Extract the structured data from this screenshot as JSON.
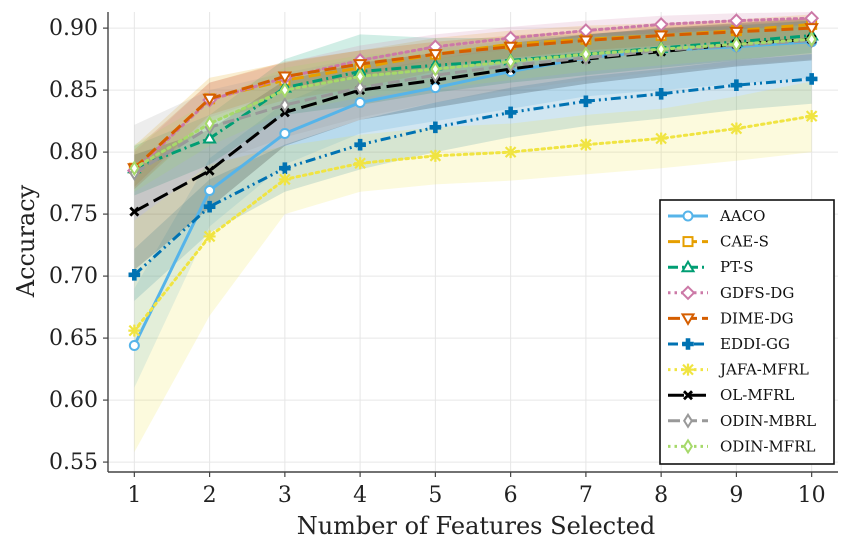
{
  "chart_data": {
    "type": "line",
    "title": "",
    "xlabel": "Number of Features Selected",
    "ylabel": "Accuracy",
    "xlim": [
      0.65,
      10.35
    ],
    "ylim": [
      0.542,
      0.913
    ],
    "grid": true,
    "legend_position": "bottom-right",
    "x": [
      1,
      2,
      3,
      4,
      5,
      6,
      7,
      8,
      9,
      10
    ],
    "x_tick_labels": [
      "1",
      "2",
      "3",
      "4",
      "5",
      "6",
      "7",
      "8",
      "9",
      "10"
    ],
    "y_ticks": [
      0.55,
      0.6,
      0.65,
      0.7,
      0.75,
      0.8,
      0.85,
      0.9
    ],
    "y_tick_labels": [
      "0.55",
      "0.60",
      "0.65",
      "0.70",
      "0.75",
      "0.80",
      "0.85",
      "0.90"
    ],
    "series": [
      {
        "name": "AACO",
        "color": "#56b4e9",
        "dash": "solid",
        "marker": "circle",
        "values": [
          0.644,
          0.769,
          0.815,
          0.84,
          0.852,
          0.865,
          0.876,
          0.882,
          0.885,
          0.889
        ],
        "lower": [
          0.61,
          0.74,
          0.79,
          0.815,
          0.825,
          0.835,
          0.845,
          0.85,
          0.855,
          0.86
        ],
        "upper": [
          0.69,
          0.795,
          0.84,
          0.865,
          0.875,
          0.885,
          0.895,
          0.9,
          0.903,
          0.906
        ]
      },
      {
        "name": "CAE-S",
        "color": "#e69f00",
        "dash": "dashed",
        "marker": "square",
        "values": [
          0.787,
          0.843,
          0.858,
          0.868,
          0.879,
          0.887,
          0.891,
          0.894,
          0.898,
          0.903
        ],
        "lower": [
          0.77,
          0.825,
          0.842,
          0.852,
          0.865,
          0.875,
          0.88,
          0.884,
          0.888,
          0.892
        ],
        "upper": [
          0.805,
          0.86,
          0.872,
          0.882,
          0.892,
          0.898,
          0.902,
          0.904,
          0.907,
          0.911
        ]
      },
      {
        "name": "PT-S",
        "color": "#009e73",
        "dash": "dashdot",
        "marker": "triangle",
        "values": [
          0.787,
          0.811,
          0.852,
          0.865,
          0.87,
          0.874,
          0.879,
          0.884,
          0.889,
          0.894
        ],
        "lower": [
          0.765,
          0.79,
          0.83,
          0.838,
          0.848,
          0.856,
          0.862,
          0.868,
          0.874,
          0.88
        ],
        "upper": [
          0.805,
          0.83,
          0.875,
          0.895,
          0.892,
          0.892,
          0.895,
          0.899,
          0.902,
          0.906
        ]
      },
      {
        "name": "GDFS-DG",
        "color": "#cc79a7",
        "dash": "dotted",
        "marker": "diamond",
        "values": [
          0.785,
          0.842,
          0.86,
          0.874,
          0.885,
          0.892,
          0.898,
          0.903,
          0.906,
          0.908
        ],
        "lower": [
          0.77,
          0.828,
          0.848,
          0.862,
          0.875,
          0.883,
          0.89,
          0.895,
          0.899,
          0.902
        ],
        "upper": [
          0.8,
          0.856,
          0.872,
          0.886,
          0.895,
          0.901,
          0.906,
          0.91,
          0.912,
          0.913
        ]
      },
      {
        "name": "DIME-DG",
        "color": "#d55e00",
        "dash": "dashed",
        "marker": "triangle-down",
        "values": [
          0.787,
          0.843,
          0.861,
          0.871,
          0.879,
          0.885,
          0.89,
          0.894,
          0.897,
          0.9
        ],
        "lower": [
          0.772,
          0.83,
          0.849,
          0.86,
          0.869,
          0.876,
          0.882,
          0.886,
          0.889,
          0.892
        ],
        "upper": [
          0.802,
          0.856,
          0.873,
          0.882,
          0.889,
          0.894,
          0.898,
          0.902,
          0.905,
          0.908
        ]
      },
      {
        "name": "EDDI-GG",
        "color": "#0072b2",
        "dash": "dashdotdot",
        "marker": "plus",
        "values": [
          0.701,
          0.756,
          0.787,
          0.806,
          0.82,
          0.832,
          0.841,
          0.847,
          0.854,
          0.859
        ],
        "lower": [
          0.68,
          0.735,
          0.768,
          0.786,
          0.8,
          0.812,
          0.821,
          0.827,
          0.834,
          0.839
        ],
        "upper": [
          0.722,
          0.778,
          0.806,
          0.826,
          0.84,
          0.852,
          0.861,
          0.867,
          0.874,
          0.879
        ]
      },
      {
        "name": "JAFA-MFRL",
        "color": "#f0e442",
        "dash": "dotted",
        "marker": "cross",
        "values": [
          0.656,
          0.732,
          0.778,
          0.791,
          0.797,
          0.8,
          0.806,
          0.811,
          0.819,
          0.829
        ],
        "lower": [
          0.558,
          0.668,
          0.75,
          0.768,
          0.774,
          0.777,
          0.782,
          0.787,
          0.793,
          0.8
        ],
        "upper": [
          0.745,
          0.79,
          0.805,
          0.814,
          0.82,
          0.823,
          0.83,
          0.835,
          0.845,
          0.857
        ]
      },
      {
        "name": "OL-MFRL",
        "color": "#000000",
        "dash": "longdash",
        "marker": "x",
        "values": [
          0.752,
          0.785,
          0.832,
          0.85,
          0.858,
          0.867,
          0.875,
          0.881,
          0.887,
          0.891
        ],
        "lower": [
          0.705,
          0.755,
          0.805,
          0.826,
          0.836,
          0.846,
          0.855,
          0.862,
          0.869,
          0.874
        ],
        "upper": [
          0.798,
          0.818,
          0.858,
          0.872,
          0.88,
          0.888,
          0.895,
          0.9,
          0.904,
          0.908
        ]
      },
      {
        "name": "ODIN-MBRL",
        "color": "#999999",
        "dash": "dashed",
        "marker": "thin-diamond",
        "values": [
          0.783,
          0.82,
          0.838,
          0.852,
          0.862,
          0.87,
          0.876,
          0.882,
          0.886,
          0.89
        ],
        "lower": [
          0.745,
          0.79,
          0.812,
          0.828,
          0.84,
          0.85,
          0.858,
          0.865,
          0.87,
          0.875
        ],
        "upper": [
          0.822,
          0.85,
          0.864,
          0.876,
          0.884,
          0.89,
          0.894,
          0.898,
          0.902,
          0.905
        ]
      },
      {
        "name": "ODIN-MFRL",
        "color": "#a6d96a",
        "dash": "dotted",
        "marker": "thin-diamond",
        "values": [
          0.787,
          0.823,
          0.85,
          0.861,
          0.867,
          0.873,
          0.879,
          0.883,
          0.887,
          0.891
        ],
        "lower": [
          0.768,
          0.805,
          0.832,
          0.844,
          0.851,
          0.858,
          0.865,
          0.87,
          0.875,
          0.879
        ],
        "upper": [
          0.806,
          0.841,
          0.868,
          0.878,
          0.883,
          0.888,
          0.893,
          0.896,
          0.899,
          0.903
        ]
      }
    ]
  }
}
